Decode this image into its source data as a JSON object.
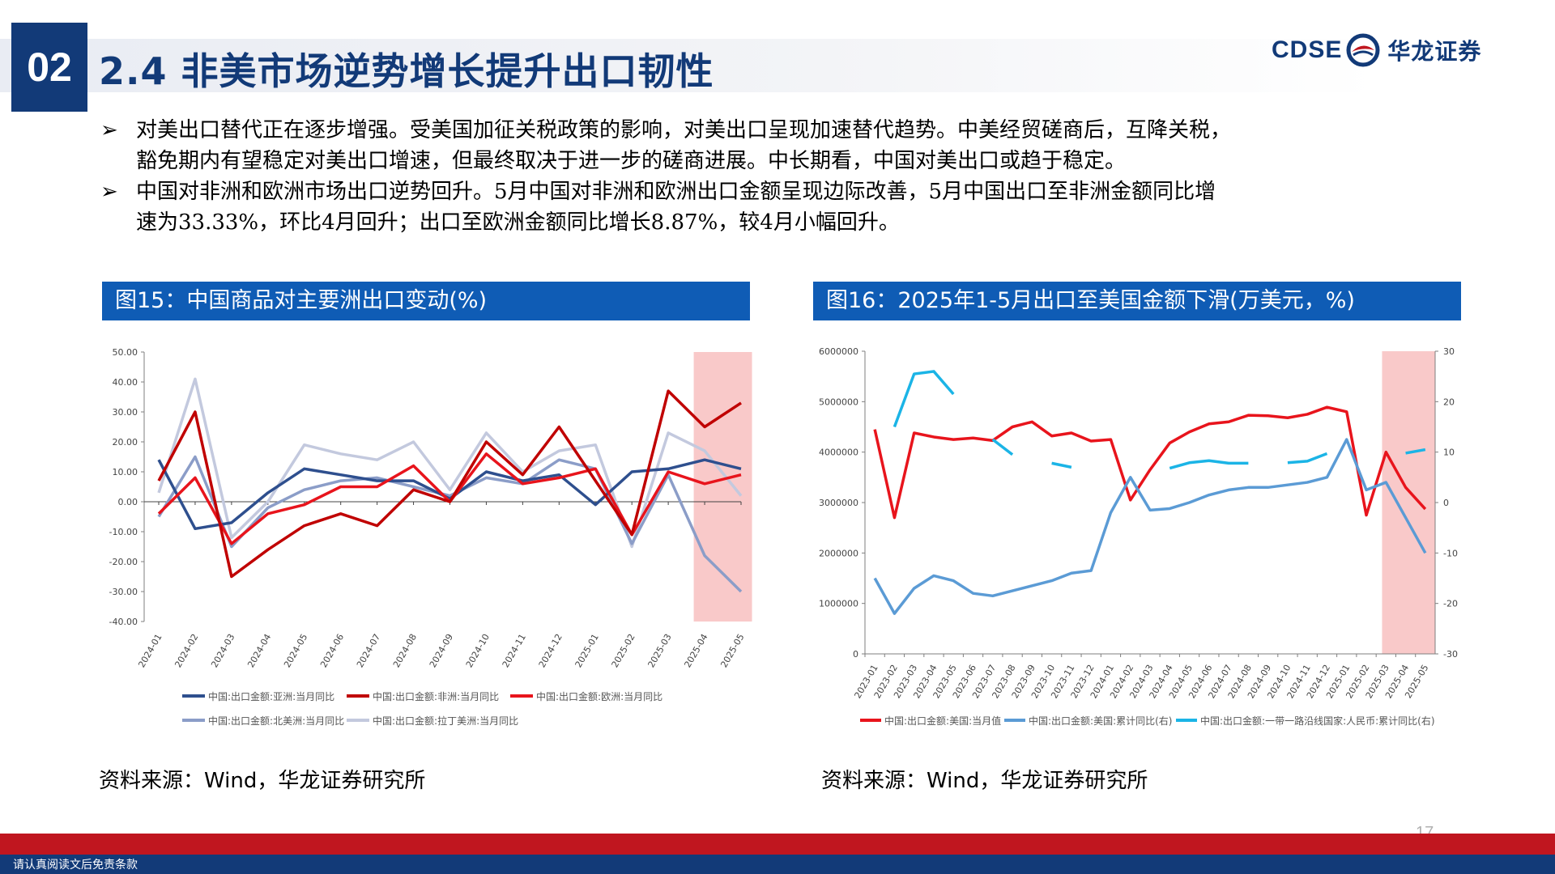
{
  "header": {
    "section_number": "02",
    "title": "2.4 非美市场逆势增长提升出口韧性",
    "logo_en": "CDSE",
    "logo_cn": "华龙证券"
  },
  "bullets": [
    {
      "l1": "对美出口替代正在逐步增强。受美国加征关税政策的影响，对美出口呈现加速替代趋势。中美经贸磋商后，互降关税，",
      "l2": "豁免期内有望稳定对美出口增速，但最终取决于进一步的磋商进展。中长期看，中国对美出口或趋于稳定。"
    },
    {
      "l1": "中国对非洲和欧洲市场出口逆势回升。5月中国对非洲和欧洲出口金额呈现边际改善，5月中国出口至非洲金额同比增",
      "l2": "速为33.33%，环比4月回升；出口至欧洲金额同比增长8.87%，较4月小幅回升。"
    }
  ],
  "figures": [
    {
      "title": "图15：中国商品对主要洲出口变动(%)",
      "source": "资料来源：Wind，华龙证券研究所"
    },
    {
      "title": "图16：2025年1-5月出口至美国金额下滑(万美元，%)",
      "source": "资料来源：Wind，华龙证券研究所"
    }
  ],
  "chart_data": [
    {
      "type": "line",
      "title": "",
      "categories": [
        "2024-01",
        "2024-02",
        "2024-03",
        "2024-04",
        "2024-05",
        "2024-06",
        "2024-07",
        "2024-08",
        "2024-09",
        "2024-10",
        "2024-11",
        "2024-12",
        "2025-01",
        "2025-02",
        "2025-03",
        "2025-04",
        "2025-05"
      ],
      "y_ticks": [
        "50.00",
        "40.00",
        "30.00",
        "20.00",
        "10.00",
        "0.00",
        "-10.00",
        "-20.00",
        "-30.00",
        "-40.00"
      ],
      "ylim": [
        -40,
        50
      ],
      "highlight_range": [
        "2025-04",
        "2025-05"
      ],
      "series": [
        {
          "name": "中国:出口金额:亚洲:当月同比",
          "color": "#2e4f8e",
          "values": [
            14,
            -9,
            -7,
            3,
            11,
            9,
            7,
            7,
            1,
            10,
            7,
            9,
            -1,
            10,
            11,
            14,
            11
          ]
        },
        {
          "name": "中国:出口金额:非洲:当月同比",
          "color": "#c00000",
          "values": [
            7,
            30,
            -25,
            -16,
            -8,
            -4,
            -8,
            4,
            0,
            20,
            9,
            25,
            7,
            -11,
            37,
            25,
            33
          ]
        },
        {
          "name": "中国:出口金额:欧洲:当月同比",
          "color": "#e8141c",
          "values": [
            -4,
            8,
            -14,
            -4,
            -1,
            5,
            5,
            12,
            0,
            16,
            6,
            8,
            11,
            -11,
            10,
            6,
            9
          ]
        },
        {
          "name": "中国:出口金额:北美洲:当月同比",
          "color": "#8b9dc8",
          "values": [
            -5,
            15,
            -15,
            -2,
            4,
            7,
            8,
            5,
            2,
            8,
            6,
            14,
            11,
            -14,
            9,
            -18,
            -30
          ]
        },
        {
          "name": "中国:出口金额:拉丁美洲:当月同比",
          "color": "#c3c9de",
          "values": [
            3,
            41,
            -12,
            0,
            19,
            16,
            14,
            20,
            4,
            23,
            10,
            17,
            19,
            -15,
            23,
            17,
            2
          ]
        }
      ]
    },
    {
      "type": "line",
      "title": "",
      "categories": [
        "2023-01",
        "2023-02",
        "2023-03",
        "2023-04",
        "2023-05",
        "2023-06",
        "2023-07",
        "2023-08",
        "2023-09",
        "2023-10",
        "2023-11",
        "2023-12",
        "2024-01",
        "2024-02",
        "2024-03",
        "2024-04",
        "2024-05",
        "2024-06",
        "2024-07",
        "2024-08",
        "2024-09",
        "2024-10",
        "2024-11",
        "2024-12",
        "2025-01",
        "2025-02",
        "2025-03",
        "2025-04",
        "2025-05"
      ],
      "y_left_ticks": [
        "6000000",
        "5000000",
        "4000000",
        "3000000",
        "2000000",
        "1000000",
        "0"
      ],
      "y_right_ticks": [
        "30",
        "20",
        "10",
        "0",
        "-10",
        "-20",
        "-30"
      ],
      "ylim_left": [
        0,
        6000000
      ],
      "ylim_right": [
        -30,
        30
      ],
      "highlight_range": [
        "2025-04",
        "2025-05"
      ],
      "series": [
        {
          "name": "中国:出口金额:美国:当月值",
          "axis": "left",
          "color": "#e8141c",
          "values": [
            4450000,
            2700000,
            4380000,
            4300000,
            4250000,
            4280000,
            4230000,
            4500000,
            4600000,
            4320000,
            4380000,
            4220000,
            4250000,
            3050000,
            3650000,
            4180000,
            4400000,
            4560000,
            4600000,
            4730000,
            4720000,
            4680000,
            4750000,
            4890000,
            4800000,
            2750000,
            4000000,
            3300000,
            2870000
          ]
        },
        {
          "name": "中国:出口金额:美国:累计同比(右)",
          "axis": "right",
          "color": "#5b9bd5",
          "values": [
            -15,
            -22,
            -17,
            -14.5,
            -15.5,
            -18,
            -18.5,
            -17.5,
            -16.5,
            -15.5,
            -14,
            -13.5,
            -2,
            5,
            -1.5,
            -1.2,
            0,
            1.5,
            2.5,
            3,
            3,
            3.5,
            4,
            5,
            12.5,
            2.5,
            4,
            -3,
            -10
          ]
        },
        {
          "name": "中国:出口金额:一带一路沿线国家:人民币:累计同比(右)",
          "axis": "right",
          "color": "#1bb4e6",
          "values": [
            null,
            15,
            25.5,
            26,
            21.5,
            null,
            12.5,
            9.5,
            null,
            7.8,
            7,
            null,
            null,
            null,
            null,
            6.8,
            7.9,
            8.3,
            7.8,
            7.8,
            null,
            7.9,
            8.2,
            9.7,
            null,
            null,
            null,
            9.8,
            10.5
          ]
        }
      ]
    }
  ],
  "footer": {
    "disclaimer": "请认真阅读文后免责条款",
    "page": "17"
  }
}
